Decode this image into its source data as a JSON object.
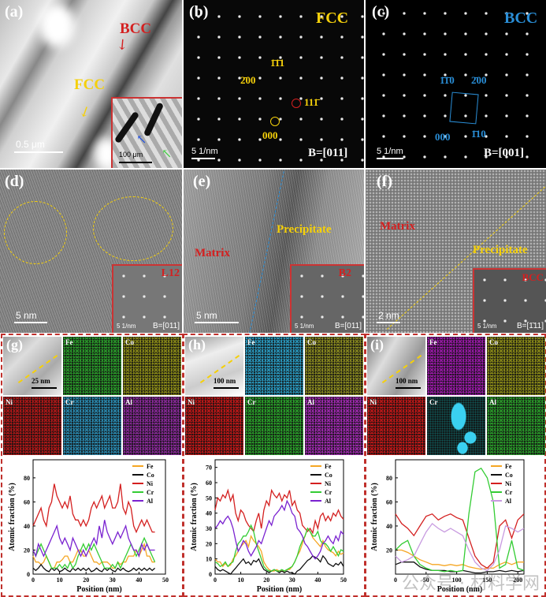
{
  "panels": {
    "a": {
      "label": "(a)",
      "bcc": "BCC",
      "fcc": "FCC",
      "scale": "0.5 μm",
      "inset_scale": "100 μm"
    },
    "b": {
      "label": "(b)",
      "phase": "FCC",
      "beam": "B=[011]",
      "scale": "5 1/nm",
      "spots": [
        "1̄1̄1",
        "2̄00",
        "111̄",
        "000"
      ],
      "phase_color": "#f5d00a"
    },
    "c": {
      "label": "(c)",
      "phase": "BCC",
      "beam": "B=[001]",
      "scale": "5 1/nm",
      "spots": [
        "1̄1̄0",
        "2̄00",
        "000",
        "1̄10"
      ],
      "phase_color": "#2a8fd8"
    },
    "d": {
      "label": "(d)",
      "scale": "5 nm",
      "inset_phase": "L12",
      "inset_scale": "5 1/nm",
      "inset_beam": "B=[011]"
    },
    "e": {
      "label": "(e)",
      "matrix": "Matrix",
      "precipitate": "Precipitate",
      "scale": "5 nm",
      "inset_phase": "B2",
      "inset_scale": "5 1/nm",
      "inset_beam": "B=[011]"
    },
    "f": {
      "label": "(f)",
      "matrix": "Matrix",
      "precipitate": "Precipitate",
      "scale": "2 nm",
      "inset_phase": "BCC",
      "inset_scale": "5 1/nm",
      "inset_beam": "B=[1̄11]"
    },
    "g": {
      "label": "(g)",
      "scale": "25 nm",
      "maps": [
        "Fe",
        "Co",
        "Ni",
        "Cr",
        "Al"
      ]
    },
    "h": {
      "label": "(h)",
      "scale": "100 nm",
      "maps": [
        "Fe",
        "Co",
        "Ni",
        "Cr",
        "Al"
      ]
    },
    "i": {
      "label": "(i)",
      "scale": "100 nm",
      "maps": [
        "Fe",
        "Co",
        "Ni",
        "Cr",
        "Al"
      ]
    }
  },
  "watermark": "公众号 · 材料学网",
  "chart_data": [
    {
      "type": "line",
      "xlabel": "Position (nm)",
      "ylabel": "Atomic fraction (%)",
      "xlim": [
        0,
        50
      ],
      "ylim": [
        0,
        95
      ],
      "xticks": [
        0,
        10,
        20,
        30,
        40,
        50
      ],
      "yticks": [
        0,
        20,
        40,
        60,
        80
      ],
      "legend": "top-right",
      "grid": false,
      "x_start": 0,
      "x_step": 1,
      "series": [
        {
          "name": "Fe",
          "color": "#f5a623",
          "values": [
            15,
            10,
            10,
            8,
            10,
            15,
            10,
            5,
            5,
            10,
            10,
            12,
            15,
            15,
            10,
            10,
            15,
            20,
            20,
            15,
            15,
            20,
            15,
            10,
            10,
            8,
            10,
            10,
            10,
            8,
            5,
            5,
            10,
            8,
            10,
            10,
            15,
            15,
            15,
            20,
            15,
            20,
            25,
            15,
            15,
            10,
            10
          ]
        },
        {
          "name": "Co",
          "color": "#111111",
          "values": [
            5,
            3,
            5,
            8,
            5,
            3,
            2,
            5,
            3,
            5,
            2,
            3,
            5,
            3,
            2,
            5,
            3,
            5,
            3,
            5,
            3,
            5,
            2,
            3,
            5,
            3,
            2,
            5,
            3,
            5,
            3,
            2,
            5,
            3,
            5,
            3,
            2,
            3,
            5,
            3,
            5,
            3,
            5,
            3,
            5,
            3,
            5
          ]
        },
        {
          "name": "Ni",
          "color": "#d42020",
          "values": [
            40,
            45,
            50,
            55,
            45,
            40,
            55,
            60,
            75,
            65,
            60,
            55,
            60,
            55,
            65,
            50,
            45,
            45,
            40,
            45,
            40,
            45,
            55,
            60,
            55,
            60,
            65,
            55,
            60,
            65,
            55,
            55,
            60,
            75,
            55,
            50,
            60,
            55,
            40,
            35,
            40,
            45,
            40,
            45,
            40,
            35,
            35
          ]
        },
        {
          "name": "Cr",
          "color": "#33cc33",
          "values": [
            20,
            15,
            20,
            25,
            20,
            15,
            10,
            5,
            5,
            5,
            8,
            5,
            8,
            5,
            10,
            5,
            8,
            15,
            20,
            25,
            20,
            25,
            20,
            25,
            20,
            15,
            10,
            5,
            5,
            5,
            8,
            5,
            10,
            5,
            10,
            15,
            20,
            25,
            20,
            15,
            20,
            25,
            30,
            25,
            20,
            15,
            10
          ]
        },
        {
          "name": "Al",
          "color": "#7a22d0",
          "values": [
            20,
            15,
            25,
            20,
            15,
            20,
            25,
            30,
            35,
            40,
            30,
            25,
            30,
            25,
            20,
            30,
            25,
            20,
            15,
            20,
            15,
            20,
            25,
            30,
            25,
            40,
            30,
            45,
            35,
            30,
            25,
            30,
            35,
            30,
            35,
            40,
            30,
            25,
            20,
            20,
            15,
            25,
            20,
            25,
            20,
            20,
            20
          ]
        }
      ]
    },
    {
      "type": "line",
      "xlabel": "Position (nm)",
      "ylabel": "Atomic fraction (%)",
      "xlim": [
        0,
        50
      ],
      "ylim": [
        0,
        75
      ],
      "xticks": [
        0,
        10,
        20,
        30,
        40,
        50
      ],
      "yticks": [
        0,
        10,
        20,
        30,
        40,
        50,
        60,
        70
      ],
      "legend": "top-right",
      "grid": false,
      "x_start": 0,
      "x_step": 1,
      "series": [
        {
          "name": "Fe",
          "color": "#f5a623",
          "values": [
            10,
            8,
            8,
            5,
            7,
            5,
            6,
            10,
            12,
            15,
            18,
            20,
            22,
            18,
            25,
            22,
            20,
            18,
            15,
            8,
            5,
            3,
            2,
            2,
            3,
            2,
            2,
            2,
            3,
            3,
            5,
            8,
            12,
            15,
            20,
            25,
            30,
            28,
            24,
            22,
            20,
            18,
            22,
            18,
            16,
            15,
            14,
            12,
            15,
            13,
            14
          ]
        },
        {
          "name": "Co",
          "color": "#111111",
          "values": [
            5,
            3,
            2,
            3,
            2,
            1,
            0,
            2,
            4,
            6,
            8,
            10,
            7,
            8,
            6,
            9,
            8,
            10,
            6,
            3,
            2,
            1,
            2,
            3,
            2,
            1,
            2,
            1,
            2,
            1,
            1,
            0,
            2,
            3,
            5,
            7,
            9,
            10,
            12,
            11,
            10,
            8,
            12,
            10,
            7,
            6,
            5,
            7,
            6,
            8,
            5
          ]
        },
        {
          "name": "Ni",
          "color": "#d42020",
          "values": [
            42,
            50,
            48,
            52,
            50,
            55,
            48,
            52,
            40,
            35,
            42,
            40,
            35,
            32,
            30,
            28,
            35,
            40,
            30,
            42,
            48,
            45,
            55,
            52,
            50,
            53,
            48,
            52,
            50,
            55,
            45,
            48,
            42,
            40,
            32,
            30,
            28,
            30,
            27,
            35,
            30,
            38,
            40,
            35,
            38,
            35,
            40,
            38,
            42,
            38,
            36
          ]
        },
        {
          "name": "Cr",
          "color": "#33cc33",
          "values": [
            8,
            7,
            5,
            6,
            8,
            5,
            7,
            8,
            15,
            20,
            22,
            25,
            25,
            28,
            32,
            28,
            20,
            15,
            10,
            5,
            3,
            2,
            2,
            3,
            2,
            2,
            3,
            2,
            3,
            4,
            5,
            8,
            12,
            18,
            22,
            25,
            30,
            28,
            25,
            25,
            28,
            22,
            20,
            20,
            18,
            15,
            18,
            15,
            12,
            16,
            15
          ]
        },
        {
          "name": "Al",
          "color": "#7a22d0",
          "values": [
            30,
            32,
            35,
            33,
            36,
            38,
            35,
            30,
            22,
            15,
            18,
            22,
            20,
            15,
            12,
            15,
            18,
            22,
            20,
            25,
            30,
            35,
            32,
            38,
            40,
            42,
            45,
            42,
            48,
            45,
            40,
            38,
            30,
            28,
            25,
            20,
            18,
            15,
            12,
            10,
            12,
            15,
            20,
            22,
            25,
            22,
            20,
            25,
            22,
            28,
            26
          ]
        }
      ]
    },
    {
      "type": "line",
      "xlabel": "Position (nm)",
      "ylabel": "Atomic fraction (%)",
      "xlim": [
        0,
        210
      ],
      "ylim": [
        0,
        95
      ],
      "xticks": [
        0,
        50,
        100,
        150,
        200
      ],
      "yticks": [
        20,
        40,
        60,
        80
      ],
      "legend": "top-right",
      "grid": false,
      "x_start": 0,
      "x_step": 10,
      "series": [
        {
          "name": "Fe",
          "color": "#f5a623",
          "values": [
            20,
            20,
            18,
            15,
            12,
            10,
            8,
            8,
            7,
            8,
            7,
            8,
            6,
            5,
            4,
            5,
            5,
            8,
            10,
            8,
            10,
            10
          ]
        },
        {
          "name": "Co",
          "color": "#111111",
          "values": [
            8,
            10,
            10,
            10,
            6,
            4,
            3,
            3,
            3,
            2,
            2,
            3,
            2,
            1,
            1,
            2,
            2,
            3,
            2,
            3,
            2,
            3
          ]
        },
        {
          "name": "Ni",
          "color": "#d42020",
          "values": [
            50,
            42,
            38,
            32,
            40,
            48,
            50,
            45,
            48,
            50,
            47,
            45,
            30,
            15,
            8,
            5,
            10,
            40,
            45,
            30,
            45,
            50
          ]
        },
        {
          "name": "Cr",
          "color": "#33cc33",
          "values": [
            20,
            25,
            28,
            15,
            8,
            5,
            3,
            3,
            2,
            3,
            2,
            3,
            50,
            85,
            88,
            80,
            60,
            5,
            8,
            28,
            5,
            3
          ]
        },
        {
          "name": "Al",
          "color": "#c89be0",
          "values": [
            15,
            10,
            12,
            15,
            25,
            35,
            42,
            38,
            35,
            38,
            35,
            32,
            20,
            10,
            5,
            3,
            8,
            20,
            40,
            38,
            35,
            38
          ]
        }
      ]
    }
  ]
}
